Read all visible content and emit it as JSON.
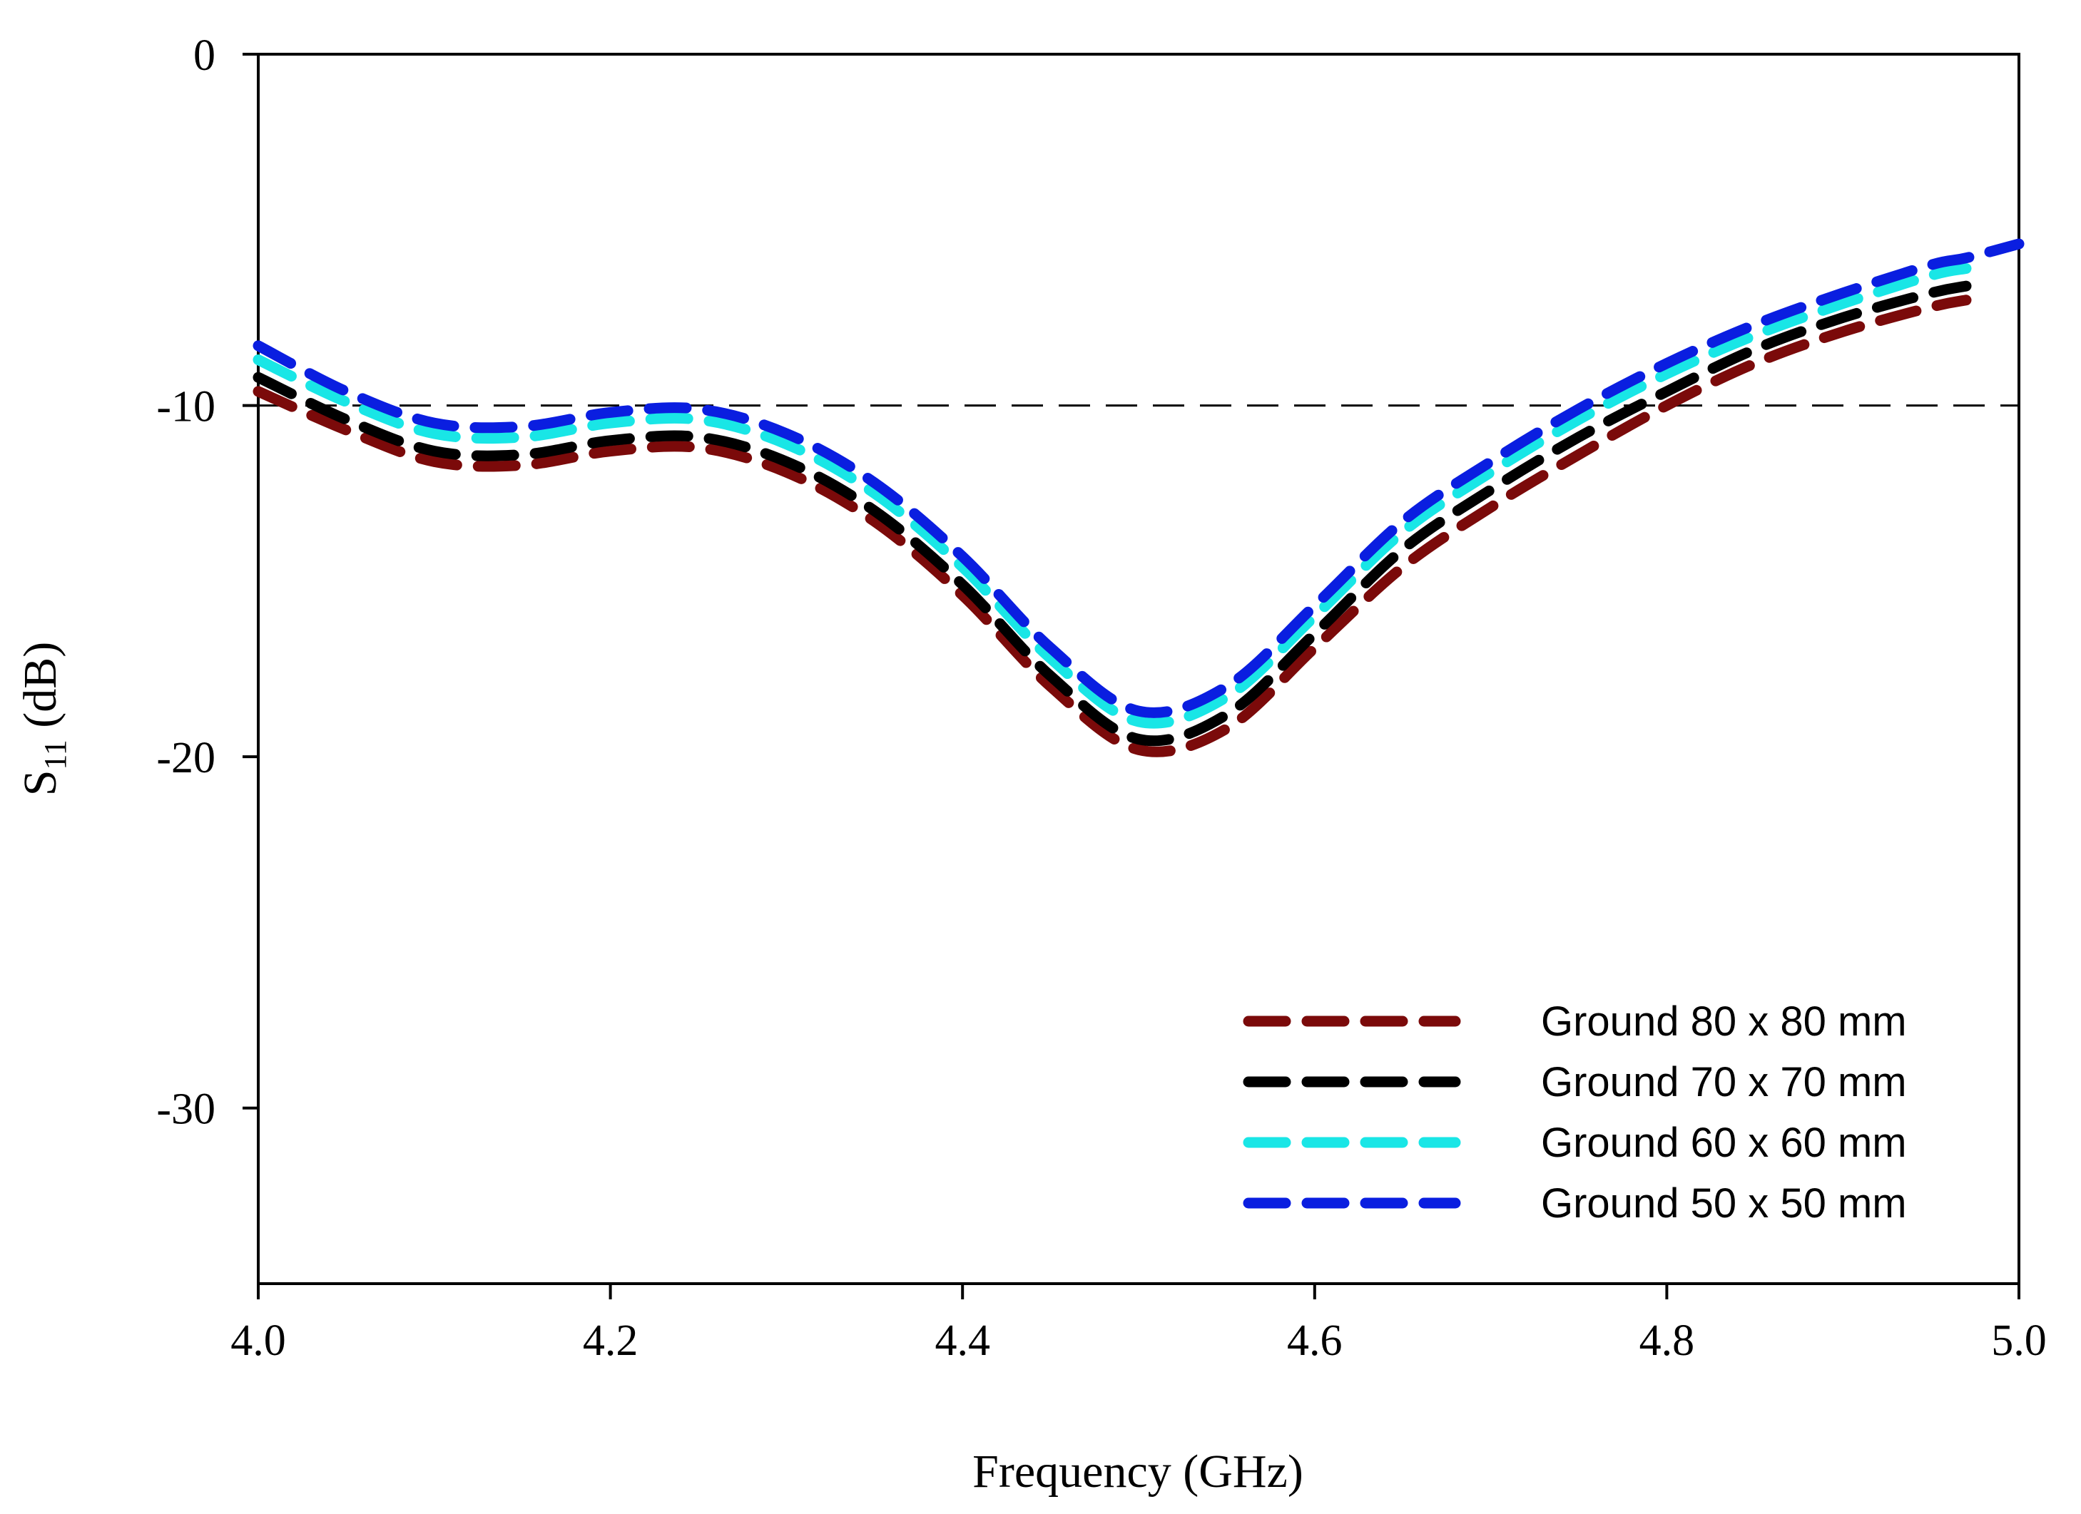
{
  "chart_data": {
    "type": "line",
    "title": "",
    "xlabel": "Frequency (GHz)",
    "ylabel": {
      "main": "S",
      "subscript": "11",
      "unit": " (dB)"
    },
    "xlim": [
      4.0,
      5.0
    ],
    "ylim": [
      -35,
      0
    ],
    "xticks": [
      4.0,
      4.2,
      4.4,
      4.6,
      4.8,
      5.0
    ],
    "xtick_labels": [
      "4.0",
      "4.2",
      "4.4",
      "4.6",
      "4.8",
      "5.0"
    ],
    "yticks": [
      0,
      -10,
      -20,
      -30
    ],
    "ytick_labels": [
      "0",
      "-10",
      "-20",
      "-30"
    ],
    "grid": false,
    "legend_position": "bottom-right",
    "reference_line": {
      "y": -10,
      "style": "dashed",
      "color": "#000000"
    },
    "x": [
      4.0,
      4.05,
      4.1,
      4.15,
      4.2,
      4.25,
      4.3,
      4.35,
      4.4,
      4.45,
      4.5,
      4.55,
      4.6,
      4.65,
      4.7,
      4.75,
      4.8,
      4.85,
      4.9,
      4.95,
      4.97,
      5.0
    ],
    "series": [
      {
        "name": "Ground 80 x 80 mm",
        "color": "#7b0a0a",
        "values": [
          -9.6,
          -10.7,
          -11.6,
          -11.7,
          -11.3,
          -11.2,
          -11.9,
          -13.3,
          -15.4,
          -18.0,
          -19.8,
          -19.2,
          -16.9,
          -14.6,
          -12.9,
          -11.4,
          -10.0,
          -8.8,
          -7.9,
          -7.2,
          -7.0,
          null
        ]
      },
      {
        "name": "Ground 70 x 70 mm",
        "color": "#000000",
        "values": [
          -9.2,
          -10.4,
          -11.3,
          -11.4,
          -11.0,
          -10.9,
          -11.6,
          -13.0,
          -15.1,
          -17.7,
          -19.5,
          -18.8,
          -16.5,
          -14.1,
          -12.4,
          -10.9,
          -9.6,
          -8.4,
          -7.5,
          -6.8,
          -6.6,
          null
        ]
      },
      {
        "name": "Ground 60 x 60 mm",
        "color": "#19e6e6",
        "values": [
          -8.7,
          -9.9,
          -10.8,
          -10.9,
          -10.5,
          -10.4,
          -11.1,
          -12.5,
          -14.6,
          -17.2,
          -19.0,
          -18.3,
          -16.0,
          -13.6,
          -11.9,
          -10.4,
          -9.1,
          -8.0,
          -7.1,
          -6.3,
          -6.1,
          null
        ]
      },
      {
        "name": "Ground 50 x 50 mm",
        "color": "#0a1ee0",
        "values": [
          -8.3,
          -9.6,
          -10.5,
          -10.6,
          -10.2,
          -10.1,
          -10.8,
          -12.2,
          -14.3,
          -16.9,
          -18.7,
          -18.0,
          -15.7,
          -13.3,
          -11.6,
          -10.1,
          -8.8,
          -7.7,
          -6.8,
          -6.0,
          -5.8,
          -5.4
        ]
      }
    ]
  }
}
